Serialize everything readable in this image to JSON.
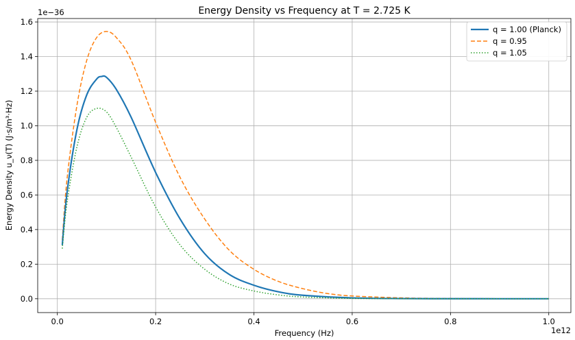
{
  "chart_data": {
    "type": "line",
    "title": "Energy Density vs Frequency at T = 2.725 K",
    "xlabel": "Frequency (Hz)",
    "ylabel": "Energy Density u_ν(T) (J·s/m³·Hz)",
    "x_offset_label": "1e12",
    "y_offset_label": "1e−36",
    "xlim": [
      -0.04,
      1.045
    ],
    "ylim": [
      -0.08,
      1.62
    ],
    "x_ticks": [
      0.0,
      0.2,
      0.4,
      0.6,
      0.8,
      1.0
    ],
    "x_tick_labels": [
      "0.0",
      "0.2",
      "0.4",
      "0.6",
      "0.8",
      "1.0"
    ],
    "y_ticks": [
      0.0,
      0.2,
      0.4,
      0.6,
      0.8,
      1.0,
      1.2,
      1.4,
      1.6
    ],
    "y_tick_labels": [
      "0.0",
      "0.2",
      "0.4",
      "0.6",
      "0.8",
      "1.0",
      "1.2",
      "1.4",
      "1.6"
    ],
    "grid": true,
    "legend_position": "top-right",
    "series": [
      {
        "name": "q = 1.00 (Planck)",
        "color": "#1f77b4",
        "style": "solid",
        "x": [
          0.01,
          0.02,
          0.04,
          0.06,
          0.08,
          0.09,
          0.1,
          0.12,
          0.15,
          0.2,
          0.25,
          0.3,
          0.35,
          0.4,
          0.45,
          0.5,
          0.6,
          0.7,
          0.8,
          0.9,
          1.0
        ],
        "y": [
          0.31,
          0.62,
          0.98,
          1.18,
          1.27,
          1.285,
          1.28,
          1.21,
          1.05,
          0.73,
          0.46,
          0.26,
          0.14,
          0.078,
          0.04,
          0.02,
          0.005,
          0.001,
          0.0003,
          0.0001,
          0.0
        ]
      },
      {
        "name": "q = 0.95",
        "color": "#ff7f0e",
        "style": "dashed",
        "x": [
          0.01,
          0.02,
          0.04,
          0.06,
          0.08,
          0.1,
          0.12,
          0.15,
          0.2,
          0.25,
          0.3,
          0.35,
          0.4,
          0.45,
          0.5,
          0.55,
          0.6,
          0.7,
          0.8,
          0.9,
          1.0
        ],
        "y": [
          0.34,
          0.7,
          1.12,
          1.38,
          1.51,
          1.545,
          1.51,
          1.38,
          1.02,
          0.7,
          0.46,
          0.28,
          0.17,
          0.1,
          0.058,
          0.03,
          0.016,
          0.005,
          0.0015,
          0.0004,
          0.0001
        ]
      },
      {
        "name": "q = 1.05",
        "color": "#2ca02c",
        "style": "dotted",
        "x": [
          0.01,
          0.02,
          0.04,
          0.06,
          0.08,
          0.1,
          0.12,
          0.15,
          0.2,
          0.25,
          0.3,
          0.35,
          0.4,
          0.45,
          0.5,
          0.6,
          0.7,
          0.8,
          0.9,
          1.0
        ],
        "y": [
          0.29,
          0.56,
          0.88,
          1.05,
          1.1,
          1.08,
          0.99,
          0.82,
          0.53,
          0.31,
          0.17,
          0.085,
          0.045,
          0.022,
          0.01,
          0.002,
          0.0005,
          0.0001,
          0.0,
          0.0
        ]
      }
    ]
  }
}
